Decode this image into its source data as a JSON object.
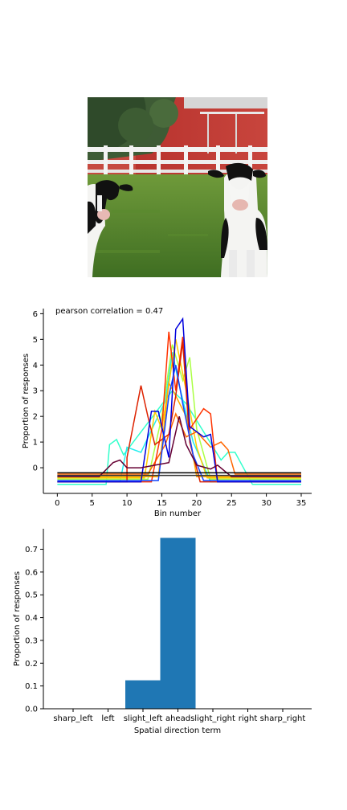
{
  "photo": {
    "subject": "two Holstein cows standing in a green pasture in front of a white fence and a red barn"
  },
  "chart_data": [
    {
      "type": "line",
      "title": "pearson correlation = 0.47",
      "xlabel": "Bin number",
      "ylabel": "Proportion of responses",
      "xlim": [
        -2,
        36.5
      ],
      "ylim": [
        -1,
        6.2
      ],
      "xticks": [
        0,
        5,
        10,
        15,
        20,
        25,
        30,
        35
      ],
      "yticks": [
        0,
        1,
        2,
        3,
        4,
        5,
        6
      ],
      "grid": false,
      "series": [
        {
          "color": "#33ffcc",
          "peaks": [
            [
              7.5,
              0.9
            ],
            [
              8.5,
              1.1
            ],
            [
              9.5,
              0.5
            ],
            [
              16.5,
              3.0
            ],
            [
              18.5,
              2.5
            ],
            [
              23.5,
              0.3
            ],
            [
              24.5,
              0.6
            ],
            [
              25.5,
              0.6
            ]
          ],
          "base": -0.65,
          "start": 7.0,
          "end": 28.0
        },
        {
          "color": "#22eeee",
          "peaks": [
            [
              10,
              0.8
            ],
            [
              12,
              0.6
            ],
            [
              15.5,
              2.6
            ],
            [
              16.5,
              4.5
            ],
            [
              17.5,
              3.2
            ],
            [
              19.5,
              1.0
            ]
          ],
          "base": -0.55,
          "start": 9.0,
          "end": 22.0
        },
        {
          "color": "#aaff44",
          "peaks": [
            [
              15,
              2.0
            ],
            [
              16.5,
              4.8
            ],
            [
              18,
              3.4
            ],
            [
              19,
              4.3
            ],
            [
              20,
              1.5
            ]
          ],
          "base": -0.45,
          "start": 13.0,
          "end": 22.0
        },
        {
          "color": "#ffcc00",
          "peaks": [
            [
              14,
              2.2
            ],
            [
              15,
              1.5
            ],
            [
              17,
              5.0
            ],
            [
              18.5,
              3.0
            ],
            [
              20,
              0.8
            ]
          ],
          "base": -0.4,
          "start": 12.5,
          "end": 21.5
        },
        {
          "color": "#ffaa00",
          "peaks": [
            [
              16,
              3.3
            ],
            [
              17,
              2.8
            ],
            [
              18.5,
              2.0
            ]
          ],
          "base": -0.35,
          "start": 14.5,
          "end": 20.0
        },
        {
          "color": "#ff6600",
          "peaks": [
            [
              15.5,
              0.9
            ],
            [
              17,
              2.1
            ],
            [
              18.5,
              1.2
            ],
            [
              20,
              1.4
            ],
            [
              22,
              0.8
            ],
            [
              23.5,
              1.0
            ],
            [
              24.5,
              0.7
            ]
          ],
          "base": -0.25,
          "start": 13.0,
          "end": 25.5
        },
        {
          "color": "#ff3300",
          "peaks": [
            [
              15,
              1.5
            ],
            [
              16,
              5.3
            ],
            [
              17,
              3.0
            ],
            [
              18,
              5.1
            ],
            [
              19,
              1.5
            ],
            [
              21,
              2.3
            ],
            [
              22,
              2.1
            ]
          ],
          "base": -0.55,
          "start": 13.5,
          "end": 23.0
        },
        {
          "color": "#dd2200",
          "peaks": [
            [
              10,
              0.4
            ],
            [
              12,
              3.2
            ],
            [
              13,
              2.0
            ],
            [
              14,
              0.9
            ],
            [
              16,
              1.3
            ],
            [
              17,
              2.8
            ],
            [
              18,
              4.9
            ],
            [
              19,
              1.0
            ]
          ],
          "base": -0.55,
          "start": 10.0,
          "end": 20.5
        },
        {
          "color": "#0000dd",
          "peaks": [
            [
              13.5,
              2.2
            ],
            [
              14.5,
              2.2
            ],
            [
              15.5,
              1.0
            ],
            [
              16,
              0.4
            ],
            [
              17,
              5.4
            ],
            [
              18,
              5.8
            ],
            [
              19,
              1.6
            ],
            [
              21,
              1.2
            ],
            [
              22,
              1.3
            ]
          ],
          "base": -0.55,
          "start": 12.0,
          "end": 23.0
        },
        {
          "color": "#1144ff",
          "peaks": [
            [
              16,
              2.8
            ],
            [
              17,
              4.0
            ],
            [
              18,
              2.5
            ],
            [
              19.5,
              0.5
            ]
          ],
          "base": -0.5,
          "start": 14.5,
          "end": 21.0
        },
        {
          "color": "#660033",
          "peaks": [
            [
              8,
              0.2
            ],
            [
              9,
              0.3
            ],
            [
              10,
              0.0
            ],
            [
              12,
              0.0
            ],
            [
              14,
              0.1
            ],
            [
              16,
              0.2
            ],
            [
              17.5,
              2.0
            ],
            [
              18.5,
              0.9
            ],
            [
              20,
              0.1
            ],
            [
              22,
              -0.05
            ],
            [
              23,
              0.1
            ]
          ],
          "base": -0.35,
          "start": 6.0,
          "end": 25.0
        },
        {
          "color": "#000000",
          "peaks": [],
          "base": -0.2,
          "start": 0.0,
          "end": 35.0
        },
        {
          "color": "#333333",
          "peaks": [],
          "base": -0.3,
          "start": 0.0,
          "end": 35.0
        }
      ]
    },
    {
      "type": "bar",
      "xlabel": "Spatial direction term",
      "ylabel": "Proportion of responses",
      "categories": [
        "sharp_left",
        "left",
        "slight_left",
        "ahead",
        "slight_right",
        "right",
        "sharp_right"
      ],
      "values": [
        0.0,
        0.0,
        0.125,
        0.75,
        0.0,
        0.0,
        0.0
      ],
      "ylim": [
        0,
        0.79
      ],
      "yticks": [
        "0.0",
        "0.1",
        "0.2",
        "0.3",
        "0.4",
        "0.5",
        "0.6",
        "0.7"
      ],
      "bar_color": "#1f77b4",
      "grid": false
    }
  ]
}
